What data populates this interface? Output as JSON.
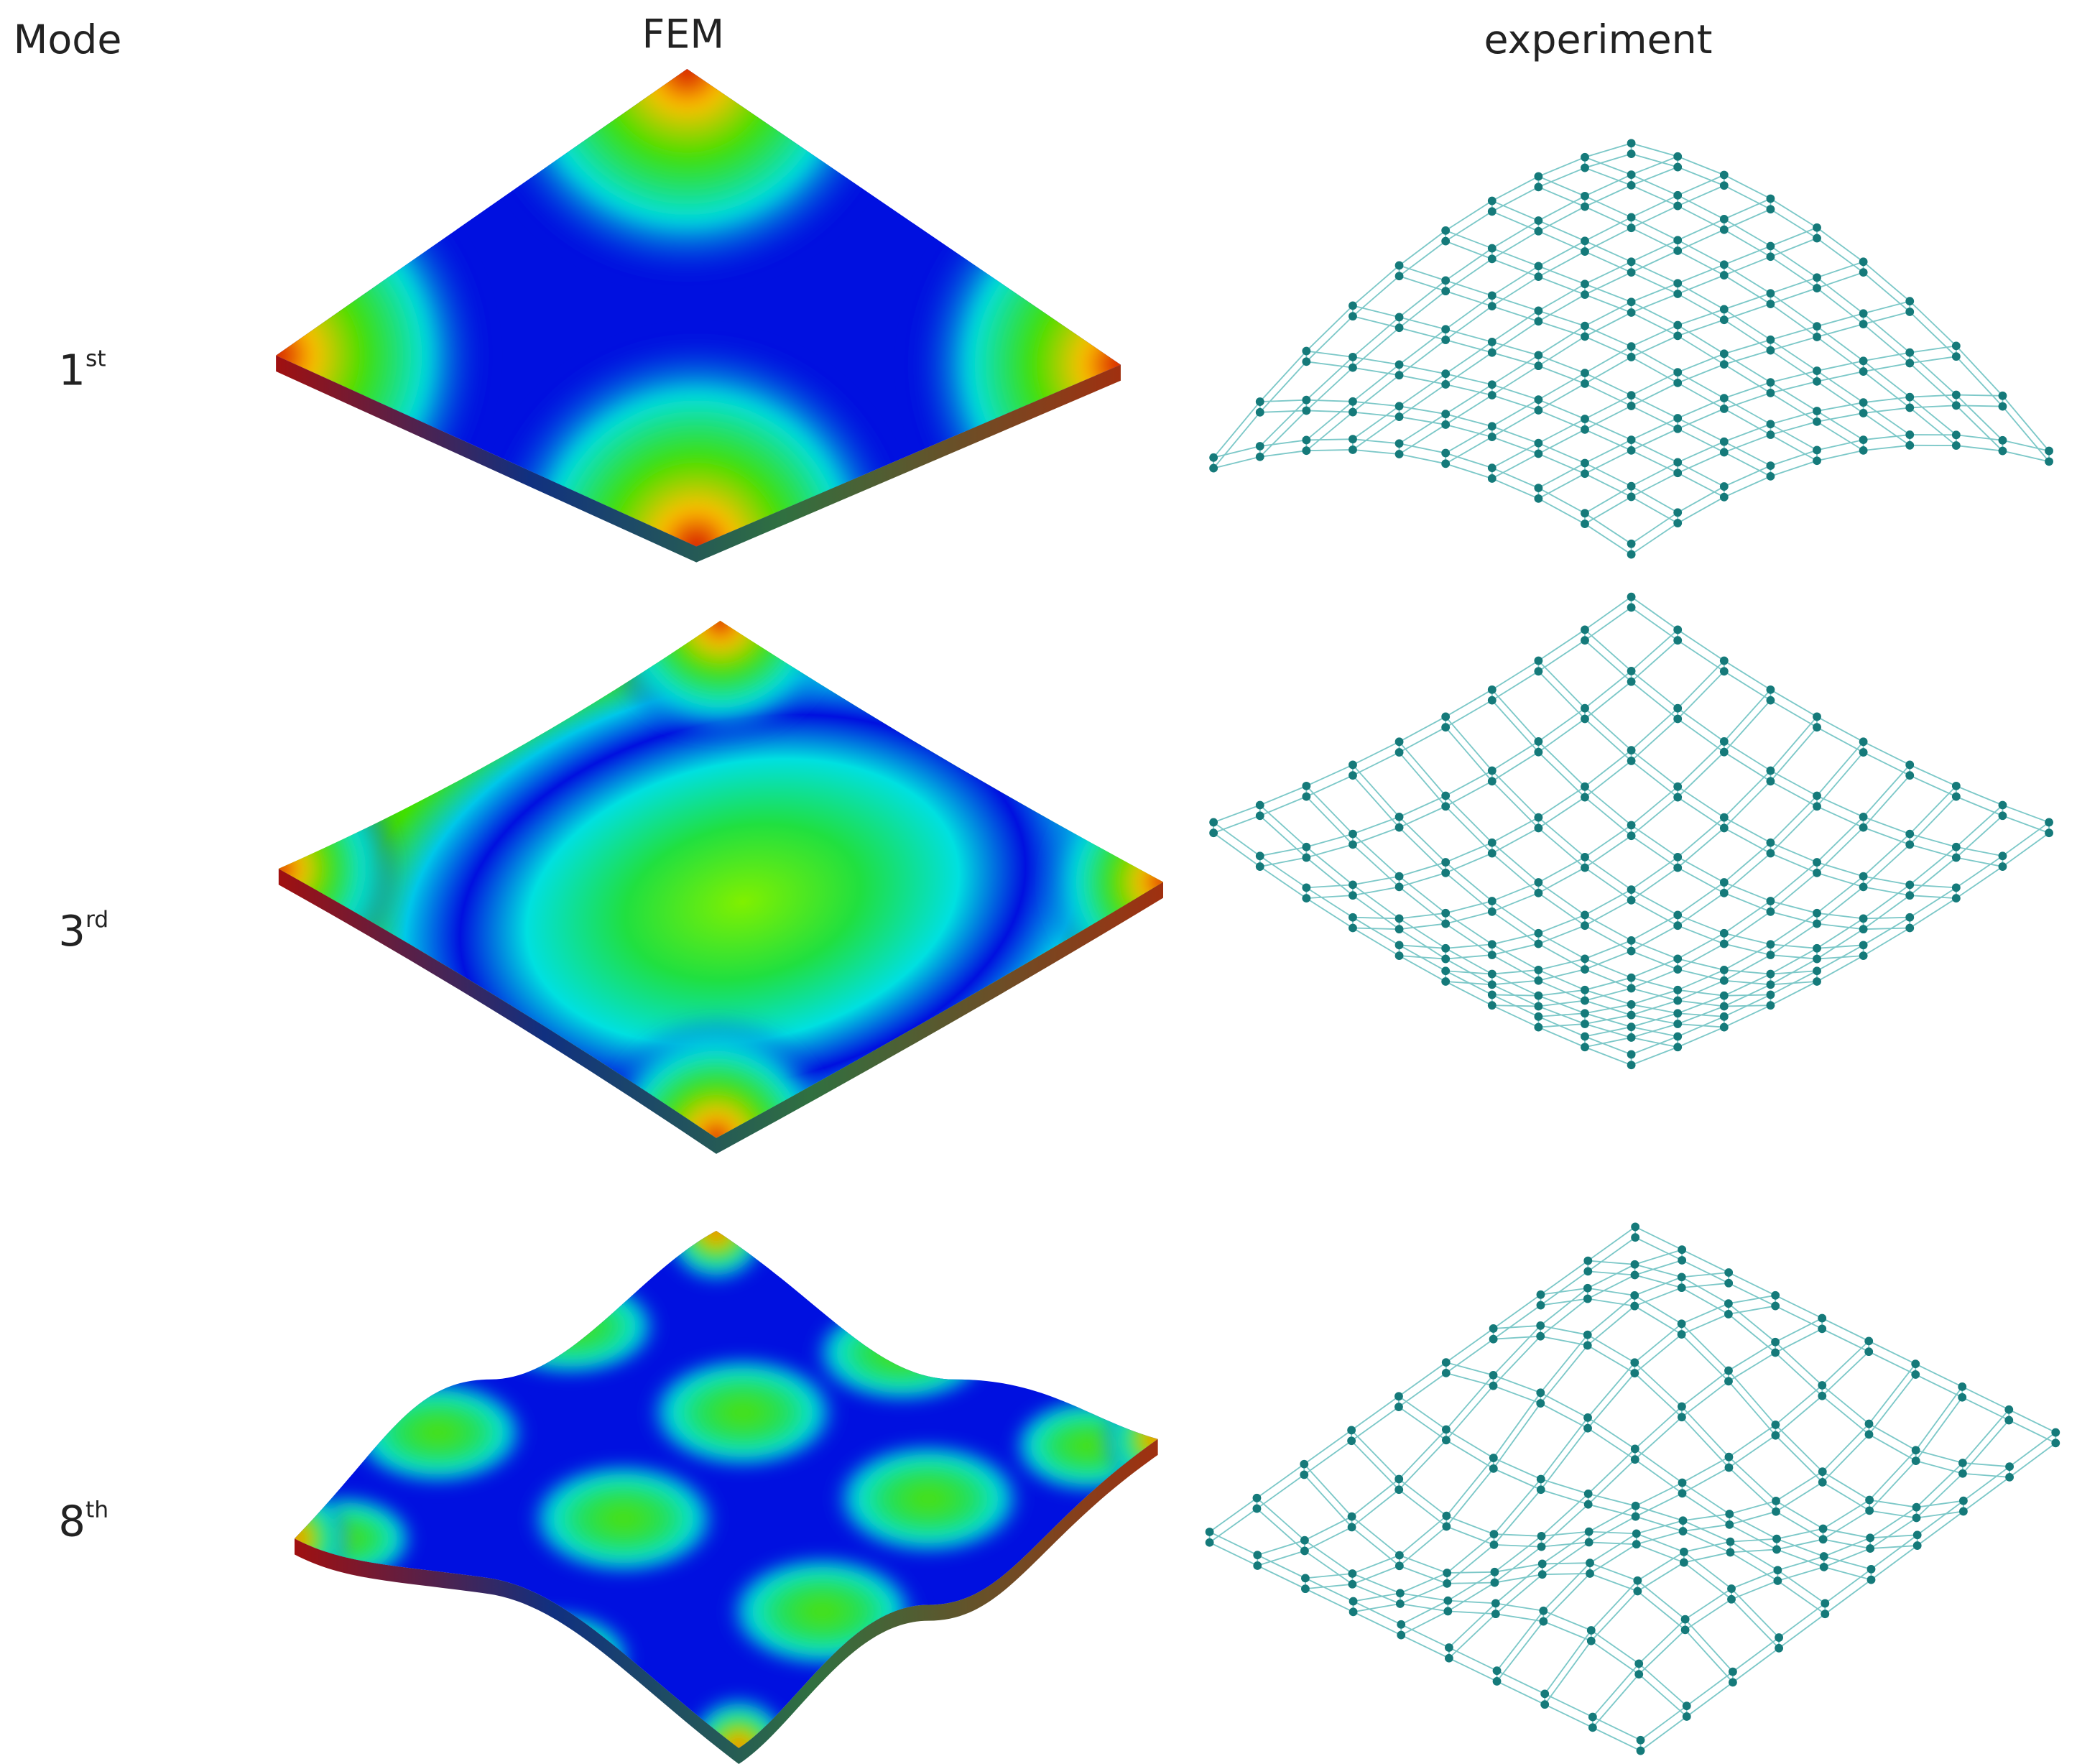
{
  "header": {
    "mode": "Mode",
    "fem": "FEM",
    "experiment": "experiment"
  },
  "rows": [
    {
      "number": "1",
      "suffix": "st"
    },
    {
      "number": "3",
      "suffix": "rd"
    },
    {
      "number": "8",
      "suffix": "th"
    }
  ]
}
